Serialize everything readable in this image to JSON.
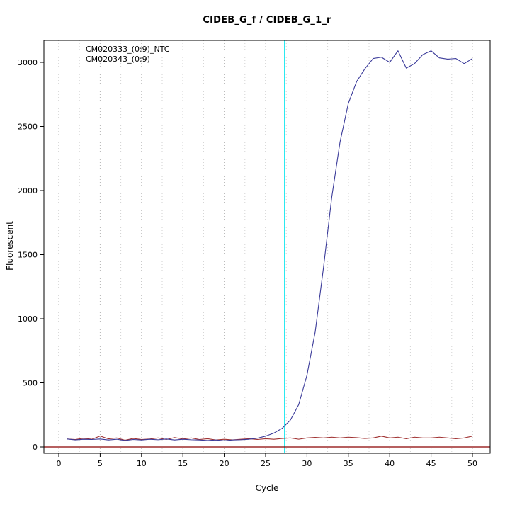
{
  "title": "CIDEB_G_f / CIDEB_G_1_r",
  "chart_data": {
    "type": "line",
    "title": "CIDEB_G_f / CIDEB_G_1_r",
    "xlabel": "Cycle",
    "ylabel": "Fluorescent",
    "xlim": [
      -1.8,
      52.1
    ],
    "ylim": [
      -50,
      3170
    ],
    "xticks": [
      0,
      5,
      10,
      15,
      20,
      25,
      30,
      35,
      40,
      45,
      50
    ],
    "yticks": [
      0,
      500,
      1000,
      1500,
      2000,
      2500,
      3000
    ],
    "grid": "vertical-dotted",
    "legend_position": "top-left",
    "threshold_line": {
      "x": 27.3,
      "color": "#00e5ee"
    },
    "baseline": {
      "y": 0,
      "color": "#8b0000"
    },
    "x": [
      1,
      2,
      3,
      4,
      5,
      6,
      7,
      8,
      9,
      10,
      11,
      12,
      13,
      14,
      15,
      16,
      17,
      18,
      19,
      20,
      21,
      22,
      23,
      24,
      25,
      26,
      27,
      28,
      29,
      30,
      31,
      32,
      33,
      34,
      35,
      36,
      37,
      38,
      39,
      40,
      41,
      42,
      43,
      44,
      45,
      46,
      47,
      48,
      49,
      50
    ],
    "series": [
      {
        "name": "CM020333_(0:9)_NTC",
        "color": "#a03232",
        "values": [
          62,
          58,
          68,
          60,
          85,
          63,
          70,
          52,
          66,
          58,
          62,
          70,
          58,
          73,
          62,
          70,
          58,
          64,
          54,
          60,
          55,
          60,
          64,
          58,
          64,
          60,
          66,
          70,
          60,
          70,
          74,
          70,
          76,
          70,
          76,
          72,
          66,
          70,
          84,
          70,
          76,
          64,
          76,
          70,
          70,
          76,
          70,
          64,
          70,
          84
        ]
      },
      {
        "name": "CM020343_(0:9)",
        "color": "#3a3a99",
        "values": [
          62,
          55,
          60,
          58,
          62,
          54,
          60,
          50,
          58,
          54,
          60,
          56,
          62,
          54,
          60,
          56,
          54,
          50,
          54,
          48,
          54,
          56,
          60,
          68,
          84,
          108,
          145,
          210,
          330,
          560,
          900,
          1400,
          1950,
          2380,
          2680,
          2850,
          2950,
          3030,
          3040,
          3000,
          3090,
          2955,
          2990,
          3060,
          3090,
          3035,
          3025,
          3030,
          2990,
          3030
        ]
      }
    ]
  }
}
